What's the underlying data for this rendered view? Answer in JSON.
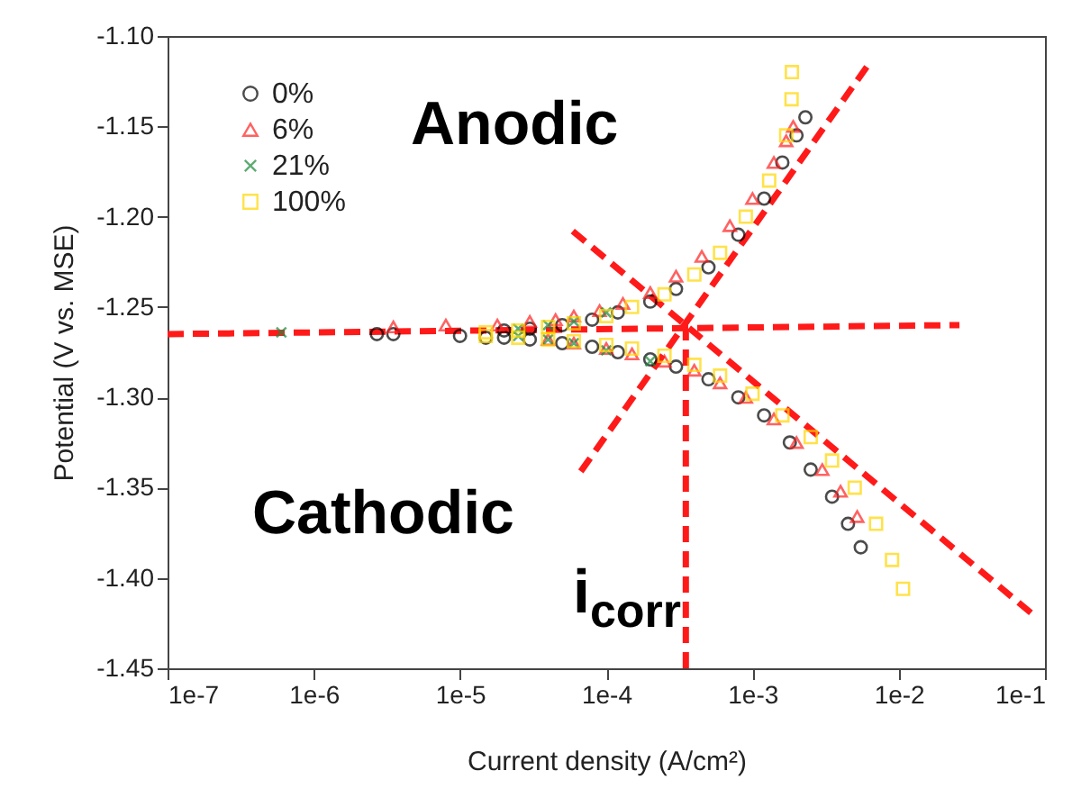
{
  "chart_data": {
    "type": "scatter",
    "xlabel": "Current density (A/cm²)",
    "ylabel": "Potential (V vs. MSE)",
    "log": "x",
    "grid": false,
    "legend": "top left",
    "xlim": [
      1e-07,
      0.1
    ],
    "xticks": [
      {
        "value": 1e-07,
        "label": "1e-7"
      },
      {
        "value": 1e-06,
        "label": "1e-6"
      },
      {
        "value": 1e-05,
        "label": "1e-5"
      },
      {
        "value": 0.0001,
        "label": "1e-4"
      },
      {
        "value": 0.001,
        "label": "1e-3"
      },
      {
        "value": 0.01,
        "label": "1e-2"
      },
      {
        "value": 0.1,
        "label": "1e-1"
      }
    ],
    "ylim": [
      -1.45,
      -1.1
    ],
    "yticks": [
      {
        "value": -1.45,
        "label": "-1.45"
      },
      {
        "value": -1.4,
        "label": "-1.40"
      },
      {
        "value": -1.35,
        "label": "-1.35"
      },
      {
        "value": -1.3,
        "label": "-1.30"
      },
      {
        "value": -1.25,
        "label": "-1.25"
      },
      {
        "value": -1.2,
        "label": "-1.20"
      },
      {
        "value": -1.15,
        "label": "-1.15"
      },
      {
        "value": -1.1,
        "label": "-1.10"
      }
    ],
    "annotations": [
      "Anodic",
      "Cathodic",
      "i$_{corr}$"
    ],
    "series": [
      {
        "name": "0%",
        "color": "#000000",
        "marker": "circle",
        "x": [
          0.0055,
          0.0045,
          0.0035,
          0.0025,
          0.0018,
          0.0012,
          0.0008,
          0.0005,
          0.0003,
          0.0002,
          0.00012,
          8e-05,
          5e-05,
          3e-05,
          2e-05,
          1.5e-05,
          1e-05,
          3.5e-06,
          2.7e-06,
          2e-05,
          3e-05,
          5e-05,
          8e-05,
          0.00012,
          0.0002,
          0.0003,
          0.0005,
          0.0008,
          0.0012,
          0.0016,
          0.002,
          0.0023
        ],
        "values": [
          -1.383,
          -1.37,
          -1.355,
          -1.34,
          -1.325,
          -1.31,
          -1.3,
          -1.29,
          -1.283,
          -1.279,
          -1.275,
          -1.272,
          -1.27,
          -1.268,
          -1.267,
          -1.267,
          -1.266,
          -1.265,
          -1.265,
          -1.263,
          -1.262,
          -1.26,
          -1.257,
          -1.253,
          -1.247,
          -1.24,
          -1.228,
          -1.21,
          -1.19,
          -1.17,
          -1.155,
          -1.145
        ]
      },
      {
        "name": "6%",
        "color": "#ff2020",
        "marker": "triangle",
        "x": [
          0.0052,
          0.004,
          0.003,
          0.002,
          0.0014,
          0.0009,
          0.0006,
          0.0004,
          0.00025,
          0.00015,
          0.0001,
          6e-05,
          4e-05,
          3.5e-06,
          8e-06,
          1.8e-05,
          3e-05,
          4.5e-05,
          6e-05,
          9e-05,
          0.00013,
          0.0002,
          0.0003,
          0.00045,
          0.0007,
          0.001,
          0.0014,
          0.0017,
          0.0019
        ],
        "values": [
          -1.366,
          -1.352,
          -1.34,
          -1.325,
          -1.312,
          -1.3,
          -1.292,
          -1.285,
          -1.28,
          -1.276,
          -1.273,
          -1.27,
          -1.268,
          -1.261,
          -1.26,
          -1.26,
          -1.258,
          -1.257,
          -1.255,
          -1.252,
          -1.248,
          -1.242,
          -1.233,
          -1.222,
          -1.205,
          -1.19,
          -1.17,
          -1.158,
          -1.15
        ]
      },
      {
        "name": "21%",
        "color": "#1a8a3a",
        "marker": "cross",
        "x": [
          0.0002,
          0.0001,
          6e-05,
          4e-05,
          2.5e-05,
          6e-07,
          2.5e-05,
          4e-05,
          6e-05,
          0.0001
        ],
        "values": [
          -1.28,
          -1.274,
          -1.27,
          -1.268,
          -1.266,
          -1.264,
          -1.262,
          -1.26,
          -1.258,
          -1.253
        ]
      },
      {
        "name": "100%",
        "color": "#ffd700",
        "marker": "square",
        "x": [
          0.0107,
          0.009,
          0.007,
          0.005,
          0.0035,
          0.0025,
          0.0016,
          0.001,
          0.0006,
          0.0004,
          0.00025,
          0.00015,
          0.0001,
          6e-05,
          4e-05,
          2.5e-05,
          1.5e-05,
          1.5e-05,
          2.5e-05,
          4e-05,
          6e-05,
          0.0001,
          0.00015,
          0.00025,
          0.0004,
          0.0006,
          0.0009,
          0.0013,
          0.0017,
          0.00185,
          0.00186
        ],
        "values": [
          -1.406,
          -1.39,
          -1.37,
          -1.35,
          -1.335,
          -1.322,
          -1.31,
          -1.298,
          -1.288,
          -1.282,
          -1.277,
          -1.273,
          -1.271,
          -1.269,
          -1.268,
          -1.267,
          -1.266,
          -1.264,
          -1.263,
          -1.261,
          -1.259,
          -1.255,
          -1.25,
          -1.243,
          -1.232,
          -1.22,
          -1.2,
          -1.18,
          -1.155,
          -1.135,
          -1.12
        ]
      },
      {
        "type": "line",
        "color": "#ff1a1a",
        "line_style": "dashed",
        "x": [
          1e-07,
          0.026
        ],
        "values": [
          -1.265,
          -1.26
        ]
      },
      {
        "type": "line",
        "color": "#ff1a1a",
        "line_style": "dashed",
        "x": [
          0.00035,
          0.00035
        ],
        "values": [
          -1.45,
          -1.262
        ]
      },
      {
        "type": "line",
        "color": "#ff1a1a",
        "line_style": "dashed",
        "x": [
          6.7e-05,
          0.0063
        ],
        "values": [
          -1.341,
          -1.115
        ]
      },
      {
        "type": "line",
        "color": "#ff1a1a",
        "line_style": "dashed",
        "x": [
          5.9e-05,
          0.085
        ],
        "values": [
          -1.208,
          -1.421
        ]
      }
    ]
  }
}
